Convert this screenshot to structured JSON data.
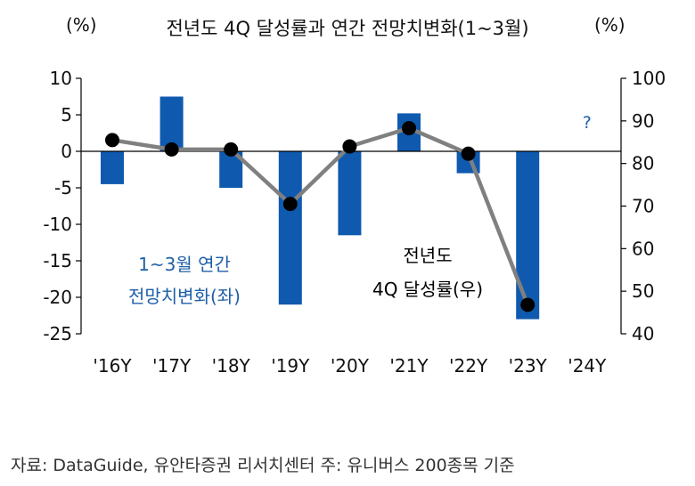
{
  "header": {
    "title": "전년도 4Q 달성률과 연간 전망치변화(1~3월)",
    "left_unit": "(%)",
    "right_unit": "(%)"
  },
  "footer": {
    "source": "자료: DataGuide, 유안타증권 리서치센터     주: 유니버스 200종목 기준"
  },
  "chart_data": {
    "type": "bar",
    "title": "전년도 4Q 달성률과 연간 전망치변화(1~3월)",
    "categories": [
      "'16Y",
      "'17Y",
      "'18Y",
      "'19Y",
      "'20Y",
      "'21Y",
      "'22Y",
      "'23Y",
      "'24Y"
    ],
    "series": [
      {
        "name": "1~3월 연간 전망치변화(좌)",
        "type": "bar",
        "axis": "left",
        "color": "#0F5AAF",
        "values": [
          -4.5,
          7.5,
          -5.0,
          -21.0,
          -11.5,
          5.2,
          -3.0,
          -23.0,
          null
        ]
      },
      {
        "name": "전년도 4Q 달성률(우)",
        "type": "line",
        "axis": "right",
        "color": "#808080",
        "marker_color": "#000000",
        "values": [
          85.5,
          83.3,
          83.3,
          70.5,
          84.0,
          88.3,
          82.3,
          46.8,
          null
        ]
      }
    ],
    "left_axis": {
      "ticks": [
        10,
        5,
        0,
        -5,
        -10,
        -15,
        -20,
        -25
      ],
      "ylim": [
        -25,
        10
      ]
    },
    "right_axis": {
      "ticks": [
        100,
        90,
        80,
        70,
        60,
        50,
        40
      ],
      "ylim": [
        40,
        100
      ]
    },
    "annotations": [
      {
        "text": "?",
        "category": "'24Y",
        "value_left": 4,
        "color": "#1F5FA8"
      },
      {
        "text": "1~3월 연간",
        "color": "#1F5FA8"
      },
      {
        "text": "전망치변화(좌)",
        "color": "#1F5FA8"
      },
      {
        "text": "전년도",
        "color": "#000000"
      },
      {
        "text": "4Q 달성률(우)",
        "color": "#000000"
      }
    ],
    "grid": false,
    "zero_line": true
  }
}
